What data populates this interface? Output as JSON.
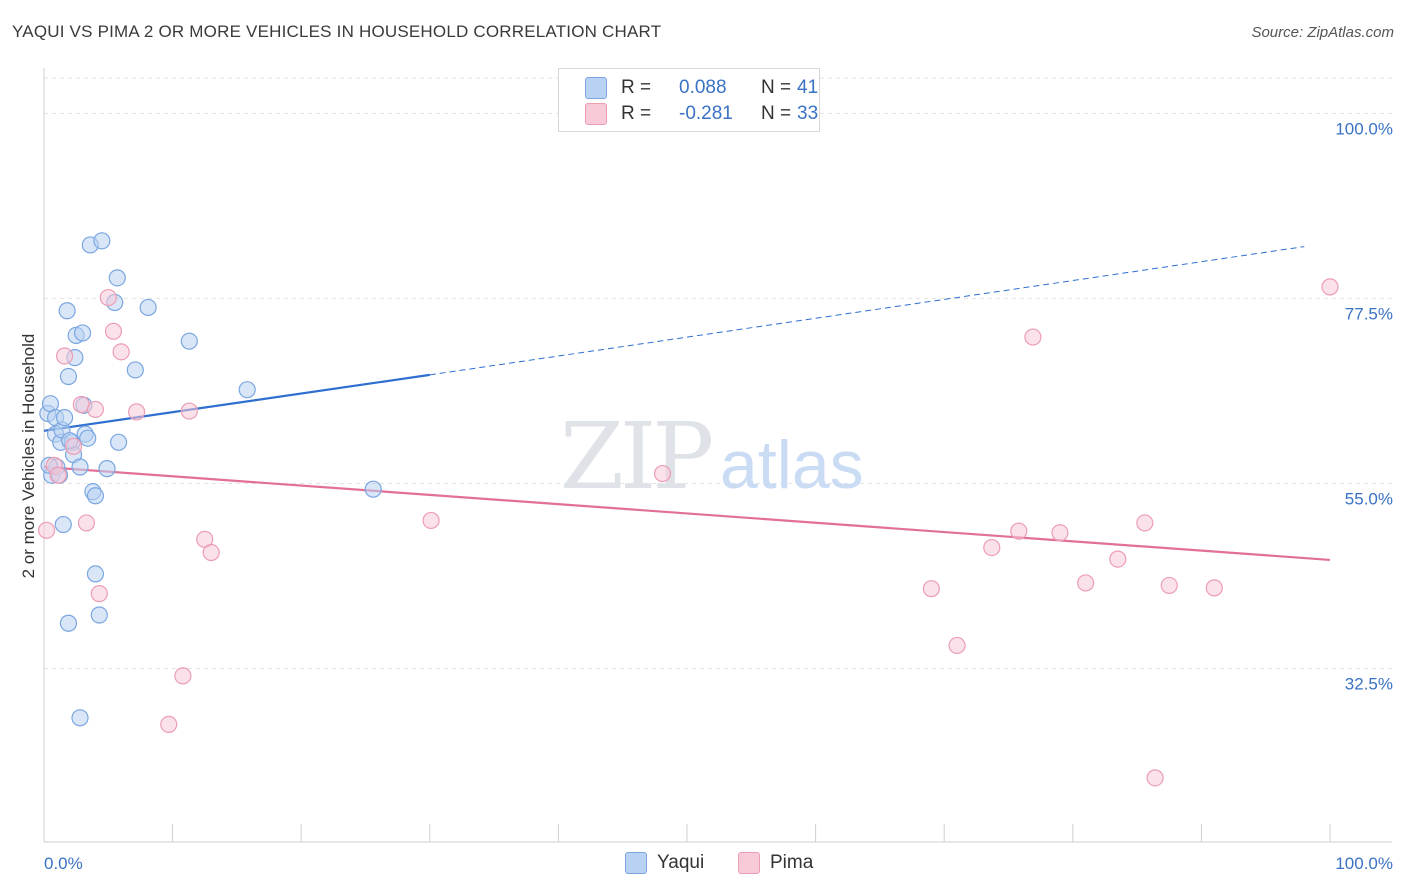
{
  "title": "YAQUI VS PIMA 2 OR MORE VEHICLES IN HOUSEHOLD CORRELATION CHART",
  "source": "Source: ZipAtlas.com",
  "watermark": {
    "zip": "ZIP",
    "atlas": "atlas"
  },
  "legend": {
    "r_label": "R =",
    "n_label": "N =",
    "rows": [
      {
        "name": "Yaqui",
        "r": "0.088",
        "n": "41",
        "fill": "#b9d1f2",
        "stroke": "#7aa6e0"
      },
      {
        "name": "Pima",
        "r": "-0.281",
        "n": "33",
        "fill": "#f8c9d7",
        "stroke": "#ec9db5"
      }
    ]
  },
  "bottom_legend": [
    "Yaqui",
    "Pima"
  ],
  "chart_data": {
    "type": "scatter",
    "title": "YAQUI VS PIMA 2 OR MORE VEHICLES IN HOUSEHOLD CORRELATION CHART",
    "xlabel": "",
    "ylabel": "2 or more Vehicles in Household",
    "xlim": [
      0,
      100
    ],
    "ylim": [
      11.4,
      104.3
    ],
    "x_tick_labels": [
      "0.0%",
      "100.0%"
    ],
    "y_ticks": [
      100.0,
      77.5,
      55.0,
      32.5
    ],
    "y_tick_labels": [
      "100.0%",
      "77.5%",
      "55.0%",
      "32.5%"
    ],
    "grid": true,
    "series": [
      {
        "name": "Yaqui",
        "color": "#7aa6e0",
        "fill": "#b9d1f2",
        "trend": {
          "x0": 0,
          "y0": 61.4,
          "x1": 30,
          "y1": 68.2,
          "dash_to_x": 98,
          "dash_to_y": 83.8,
          "color": "#2e6fd0"
        },
        "points": [
          {
            "x": 0.3,
            "y": 63.5
          },
          {
            "x": 0.5,
            "y": 64.7
          },
          {
            "x": 0.6,
            "y": 56.0
          },
          {
            "x": 0.9,
            "y": 63.0
          },
          {
            "x": 0.9,
            "y": 61.0
          },
          {
            "x": 1.0,
            "y": 57.0
          },
          {
            "x": 1.2,
            "y": 56.0
          },
          {
            "x": 1.3,
            "y": 60.0
          },
          {
            "x": 1.4,
            "y": 61.5
          },
          {
            "x": 1.5,
            "y": 50.0
          },
          {
            "x": 1.8,
            "y": 76.0
          },
          {
            "x": 1.9,
            "y": 68.0
          },
          {
            "x": 1.9,
            "y": 38.0
          },
          {
            "x": 2.2,
            "y": 60.0
          },
          {
            "x": 2.3,
            "y": 58.5
          },
          {
            "x": 2.4,
            "y": 70.3
          },
          {
            "x": 2.5,
            "y": 73.0
          },
          {
            "x": 2.8,
            "y": 57.0
          },
          {
            "x": 2.8,
            "y": 26.5
          },
          {
            "x": 3.0,
            "y": 73.3
          },
          {
            "x": 3.1,
            "y": 64.5
          },
          {
            "x": 3.2,
            "y": 61.0
          },
          {
            "x": 3.4,
            "y": 60.5
          },
          {
            "x": 3.6,
            "y": 84.0
          },
          {
            "x": 3.8,
            "y": 54.0
          },
          {
            "x": 4.0,
            "y": 44.0
          },
          {
            "x": 4.0,
            "y": 53.5
          },
          {
            "x": 4.3,
            "y": 39.0
          },
          {
            "x": 4.5,
            "y": 84.5
          },
          {
            "x": 4.9,
            "y": 56.8
          },
          {
            "x": 5.5,
            "y": 77.0
          },
          {
            "x": 5.7,
            "y": 80.0
          },
          {
            "x": 5.8,
            "y": 60.0
          },
          {
            "x": 7.1,
            "y": 68.8
          },
          {
            "x": 8.1,
            "y": 76.4
          },
          {
            "x": 11.3,
            "y": 72.3
          },
          {
            "x": 15.8,
            "y": 66.4
          },
          {
            "x": 25.6,
            "y": 54.3
          },
          {
            "x": 1.6,
            "y": 63.0
          },
          {
            "x": 2.0,
            "y": 60.2
          },
          {
            "x": 0.4,
            "y": 57.2
          }
        ]
      },
      {
        "name": "Pima",
        "color": "#ec9db5",
        "fill": "#f8c9d7",
        "trend": {
          "x0": 0,
          "y0": 57.0,
          "x1": 100,
          "y1": 45.7,
          "color": "#e26f97"
        },
        "points": [
          {
            "x": 0.2,
            "y": 49.3
          },
          {
            "x": 0.8,
            "y": 57.2
          },
          {
            "x": 1.1,
            "y": 56.0
          },
          {
            "x": 1.6,
            "y": 70.5
          },
          {
            "x": 2.3,
            "y": 59.5
          },
          {
            "x": 2.9,
            "y": 64.6
          },
          {
            "x": 3.3,
            "y": 50.2
          },
          {
            "x": 4.0,
            "y": 64.0
          },
          {
            "x": 4.3,
            "y": 41.6
          },
          {
            "x": 5.0,
            "y": 77.6
          },
          {
            "x": 5.4,
            "y": 73.5
          },
          {
            "x": 6.0,
            "y": 71.0
          },
          {
            "x": 7.2,
            "y": 63.7
          },
          {
            "x": 9.7,
            "y": 25.7
          },
          {
            "x": 10.8,
            "y": 31.6
          },
          {
            "x": 11.3,
            "y": 63.8
          },
          {
            "x": 12.5,
            "y": 48.2
          },
          {
            "x": 13.0,
            "y": 46.6
          },
          {
            "x": 30.1,
            "y": 50.5
          },
          {
            "x": 48.1,
            "y": 56.2
          },
          {
            "x": 69.0,
            "y": 42.2
          },
          {
            "x": 71.0,
            "y": 35.3
          },
          {
            "x": 73.7,
            "y": 47.2
          },
          {
            "x": 75.8,
            "y": 49.2
          },
          {
            "x": 76.9,
            "y": 72.8
          },
          {
            "x": 79.0,
            "y": 49.0
          },
          {
            "x": 81.0,
            "y": 42.9
          },
          {
            "x": 83.5,
            "y": 45.8
          },
          {
            "x": 85.6,
            "y": 50.2
          },
          {
            "x": 86.4,
            "y": 19.2
          },
          {
            "x": 87.5,
            "y": 42.6
          },
          {
            "x": 91.0,
            "y": 42.3
          },
          {
            "x": 100.0,
            "y": 78.9
          }
        ]
      }
    ]
  }
}
